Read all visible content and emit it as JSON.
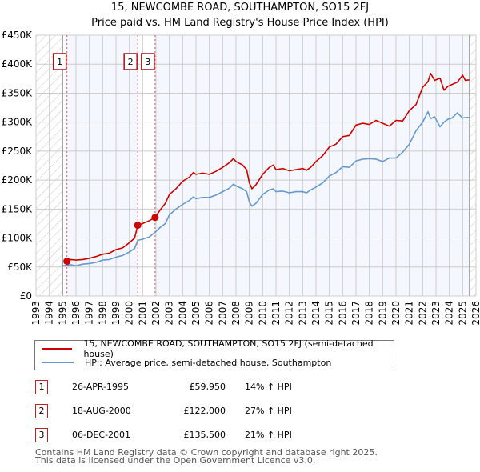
{
  "title_line1": "15, NEWCOMBE ROAD, SOUTHAMPTON, SO15 2FJ",
  "title_line2": "Price paid vs. HM Land Registry's House Price Index (HPI)",
  "colors": {
    "property": "#cc0000",
    "hpi": "#6699cc",
    "marker_border": "#aa1111",
    "plot_bg": "#f4f7fd",
    "grid": "#cccccc"
  },
  "legend": {
    "property_label": "15, NEWCOMBE ROAD, SOUTHAMPTON, SO15 2FJ (semi-detached house)",
    "hpi_label": "HPI: Average price, semi-detached house, Southampton"
  },
  "transactions": [
    {
      "num": "1",
      "date": "26-APR-1995",
      "price": "£59,950",
      "hpi": "14% ↑ HPI"
    },
    {
      "num": "2",
      "date": "18-AUG-2000",
      "price": "£122,000",
      "hpi": "27% ↑ HPI"
    },
    {
      "num": "3",
      "date": "06-DEC-2001",
      "price": "£135,500",
      "hpi": "21% ↑ HPI"
    }
  ],
  "footer_line1": "Contains HM Land Registry data © Crown copyright and database right 2025.",
  "footer_line2": "This data is licensed under the Open Government Licence v3.0.",
  "chart_data": {
    "type": "line",
    "title": "15, NEWCOMBE ROAD, SOUTHAMPTON, SO15 2FJ — Price paid vs. HM Land Registry's House Price Index (HPI)",
    "xlabel": "",
    "ylabel": "",
    "xlim": [
      1993,
      2026
    ],
    "ylim": [
      0,
      450000
    ],
    "x_ticks": [
      "1993",
      "1994",
      "1995",
      "1996",
      "1997",
      "1998",
      "1999",
      "2000",
      "2001",
      "2002",
      "2003",
      "2004",
      "2005",
      "2006",
      "2007",
      "2008",
      "2009",
      "2010",
      "2011",
      "2012",
      "2013",
      "2014",
      "2015",
      "2016",
      "2017",
      "2018",
      "2019",
      "2020",
      "2021",
      "2022",
      "2023",
      "2024",
      "2025",
      "2026"
    ],
    "y_ticks": [
      {
        "value": 0,
        "label": "£0"
      },
      {
        "value": 50000,
        "label": "£50K"
      },
      {
        "value": 100000,
        "label": "£100K"
      },
      {
        "value": 150000,
        "label": "£150K"
      },
      {
        "value": 200000,
        "label": "£200K"
      },
      {
        "value": 250000,
        "label": "£250K"
      },
      {
        "value": 300000,
        "label": "£300K"
      },
      {
        "value": 350000,
        "label": "£350K"
      },
      {
        "value": 400000,
        "label": "£400K"
      },
      {
        "value": 450000,
        "label": "£450K"
      }
    ],
    "grid": true,
    "hatched_ranges": [
      [
        1993,
        1995.0
      ],
      [
        2025.5,
        2026
      ]
    ],
    "shaded_ranges": [
      [
        1995.32,
        2000.63
      ],
      [
        2001.93,
        2025.5
      ]
    ],
    "series": [
      {
        "name": "15, NEWCOMBE ROAD, SOUTHAMPTON, SO15 2FJ (semi-detached house)",
        "color": "#cc0000",
        "x": [
          1995.32,
          1995.6,
          1996.0,
          1996.5,
          1997.0,
          1997.5,
          1998.0,
          1998.5,
          1999.0,
          1999.5,
          2000.0,
          2000.4,
          2000.63,
          2001.0,
          2001.5,
          2001.93,
          2002.3,
          2002.7,
          2003.0,
          2003.5,
          2004.0,
          2004.5,
          2004.8,
          2005.0,
          2005.5,
          2006.0,
          2006.5,
          2007.0,
          2007.5,
          2007.8,
          2008.0,
          2008.5,
          2008.8,
          2009.0,
          2009.2,
          2009.5,
          2010.0,
          2010.5,
          2010.8,
          2011.0,
          2011.5,
          2012.0,
          2012.5,
          2013.0,
          2013.3,
          2013.6,
          2014.0,
          2014.5,
          2015.0,
          2015.5,
          2016.0,
          2016.5,
          2017.0,
          2017.5,
          2018.0,
          2018.5,
          2019.0,
          2019.5,
          2020.0,
          2020.5,
          2021.0,
          2021.5,
          2022.0,
          2022.4,
          2022.6,
          2022.9,
          2023.3,
          2023.6,
          2023.9,
          2024.2,
          2024.6,
          2025.0,
          2025.2,
          2025.5
        ],
        "values": [
          60000,
          63000,
          62000,
          63000,
          65000,
          68000,
          72000,
          74000,
          80000,
          83000,
          92000,
          100000,
          122000,
          125000,
          130000,
          135500,
          148000,
          160000,
          175000,
          185000,
          198000,
          205000,
          213000,
          210000,
          212000,
          210000,
          215000,
          222000,
          230000,
          237000,
          232000,
          226000,
          218000,
          195000,
          185000,
          192000,
          210000,
          222000,
          226000,
          218000,
          220000,
          216000,
          218000,
          220000,
          217000,
          222000,
          232000,
          242000,
          257000,
          262000,
          275000,
          277000,
          295000,
          298000,
          296000,
          303000,
          298000,
          293000,
          303000,
          302000,
          320000,
          330000,
          360000,
          370000,
          384000,
          372000,
          376000,
          355000,
          362000,
          365000,
          369000,
          381000,
          372000,
          373000
        ]
      },
      {
        "name": "HPI: Average price, semi-detached house, Southampton",
        "color": "#6699cc",
        "x": [
          1995.0,
          1995.32,
          1995.6,
          1996.0,
          1996.5,
          1997.0,
          1997.5,
          1998.0,
          1998.5,
          1999.0,
          1999.5,
          2000.0,
          2000.4,
          2000.63,
          2001.0,
          2001.5,
          2001.93,
          2002.3,
          2002.7,
          2003.0,
          2003.5,
          2004.0,
          2004.5,
          2004.8,
          2005.0,
          2005.5,
          2006.0,
          2006.5,
          2007.0,
          2007.5,
          2007.8,
          2008.0,
          2008.5,
          2008.8,
          2009.0,
          2009.2,
          2009.5,
          2010.0,
          2010.5,
          2010.8,
          2011.0,
          2011.5,
          2012.0,
          2012.5,
          2013.0,
          2013.3,
          2013.6,
          2014.0,
          2014.5,
          2015.0,
          2015.5,
          2016.0,
          2016.5,
          2017.0,
          2017.5,
          2018.0,
          2018.5,
          2019.0,
          2019.5,
          2020.0,
          2020.5,
          2021.0,
          2021.5,
          2022.0,
          2022.4,
          2022.6,
          2022.9,
          2023.3,
          2023.6,
          2023.9,
          2024.2,
          2024.6,
          2025.0,
          2025.2,
          2025.5
        ],
        "values": [
          52000,
          53000,
          54000,
          52000,
          55000,
          56000,
          58000,
          62000,
          63000,
          67000,
          70000,
          76000,
          82000,
          96000,
          98000,
          102000,
          110000,
          118000,
          125000,
          140000,
          150000,
          158000,
          165000,
          171000,
          168000,
          170000,
          170000,
          174000,
          180000,
          186000,
          193000,
          190000,
          185000,
          180000,
          162000,
          155000,
          160000,
          175000,
          183000,
          185000,
          180000,
          181000,
          178000,
          180000,
          180000,
          178000,
          183000,
          188000,
          195000,
          207000,
          213000,
          223000,
          222000,
          233000,
          236000,
          237000,
          236000,
          232000,
          238000,
          238000,
          248000,
          262000,
          285000,
          300000,
          318000,
          306000,
          309000,
          292000,
          300000,
          305000,
          307000,
          316000,
          307000,
          308000,
          308000
        ]
      }
    ],
    "markers": [
      {
        "label": "1",
        "x": 1995.32,
        "value": 59950
      },
      {
        "label": "2",
        "x": 2000.63,
        "value": 122000
      },
      {
        "label": "3",
        "x": 2001.93,
        "value": 135500
      }
    ]
  }
}
